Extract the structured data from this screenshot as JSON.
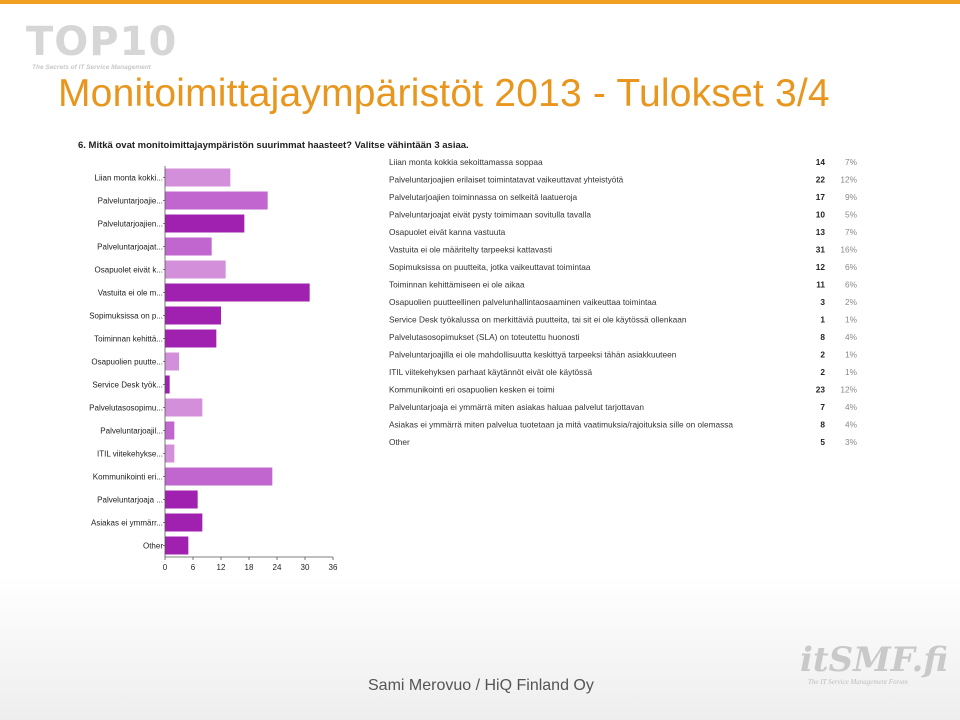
{
  "slide": {
    "title": "Monitoimittajaympäristöt 2013  - Tulokset 3/4",
    "footer": "Sami Merovuo / HiQ Finland Oy",
    "logo_top10": {
      "main": "TOP10",
      "sub": "The Secrets of IT Service Management"
    },
    "logo_itsmf": {
      "main": "itSMF.fi",
      "sub": "The IT Service Management Forum"
    },
    "colors": {
      "title": "#e8961e",
      "accent_line": "#f0a020",
      "bar_light": "#d48fdb",
      "bar_dark": "#a020b0"
    }
  },
  "chart_data": {
    "type": "bar",
    "orientation": "horizontal",
    "title": "6. Mitkä ovat monitoimittajaympäristön suurimmat haasteet? Valitse vähintään 3 asiaa.",
    "xlim": [
      0,
      36
    ],
    "xticks": [
      "0",
      "6",
      "12",
      "18",
      "24",
      "30",
      "36"
    ],
    "grid": false,
    "categories": [
      "Liian monta kokki...",
      "Palveluntarjoajie...",
      "Palvelutarjoajien...",
      "Palveluntarjoajat...",
      "Osapuolet eivät k...",
      "Vastuita ei ole m...",
      "Sopimuksissa on p...",
      "Toiminnan kehittä...",
      "Osapuolien puutte...",
      "Service Desk työk...",
      "Palvelutasosopimu...",
      "Palveluntarjoajil...",
      "ITIL viitekehykse...",
      "Kommunikointi eri...",
      "Palveluntarjoaja ...",
      "Asiakas ei ymmärr...",
      "Other"
    ],
    "values": [
      14,
      22,
      17,
      10,
      13,
      31,
      12,
      11,
      3,
      1,
      8,
      2,
      2,
      23,
      7,
      8,
      5
    ],
    "bar_colors": [
      "#d48fdb",
      "#c166cf",
      "#a020b0",
      "#c166cf",
      "#d48fdb",
      "#a020b0",
      "#a020b0",
      "#a020b0",
      "#d48fdb",
      "#a020b0",
      "#d48fdb",
      "#c166cf",
      "#d48fdb",
      "#c166cf",
      "#a020b0",
      "#a020b0",
      "#a020b0"
    ],
    "table": {
      "rows": [
        {
          "label": "Liian monta kokkia sekoittamassa soppaa",
          "count": "14",
          "percent": "7%"
        },
        {
          "label": "Palveluntarjoajien erilaiset toimintatavat vaikeuttavat yhteistyötä",
          "count": "22",
          "percent": "12%"
        },
        {
          "label": "Palvelutarjoajien toiminnassa on selkeitä laatueroja",
          "count": "17",
          "percent": "9%"
        },
        {
          "label": "Palveluntarjoajat eivät pysty toimimaan sovitulla tavalla",
          "count": "10",
          "percent": "5%"
        },
        {
          "label": "Osapuolet eivät kanna vastuuta",
          "count": "13",
          "percent": "7%"
        },
        {
          "label": "Vastuita ei ole määritelty tarpeeksi kattavasti",
          "count": "31",
          "percent": "16%"
        },
        {
          "label": "Sopimuksissa on puutteita, jotka vaikeuttavat toimintaa",
          "count": "12",
          "percent": "6%"
        },
        {
          "label": "Toiminnan kehittämiseen ei ole aikaa",
          "count": "11",
          "percent": "6%"
        },
        {
          "label": "Osapuolien puutteellinen palvelunhallintaosaaminen vaikeuttaa toimintaa",
          "count": "3",
          "percent": "2%"
        },
        {
          "label": "Service Desk työkalussa on merkittäviä puutteita, tai sit ei ole käytössä ollenkaan",
          "count": "1",
          "percent": "1%"
        },
        {
          "label": "Palvelutasosopimukset (SLA) on toteutettu huonosti",
          "count": "8",
          "percent": "4%"
        },
        {
          "label": "Palveluntarjoajilla ei ole mahdollisuutta keskittyä tarpeeksi tähän asiakkuuteen",
          "count": "2",
          "percent": "1%"
        },
        {
          "label": "ITIL viitekehyksen parhaat käytännöt eivät ole käytössä",
          "count": "2",
          "percent": "1%"
        },
        {
          "label": "Kommunikointi eri osapuolien kesken ei toimi",
          "count": "23",
          "percent": "12%"
        },
        {
          "label": "Palveluntarjoaja ei ymmärrä miten asiakas haluaa palvelut tarjottavan",
          "count": "7",
          "percent": "4%"
        },
        {
          "label": "Asiakas ei ymmärrä miten palvelua tuotetaan ja mitä vaatimuksia/rajoituksia sille on olemassa",
          "count": "8",
          "percent": "4%"
        },
        {
          "label": "Other",
          "count": "5",
          "percent": "3%"
        }
      ]
    }
  }
}
